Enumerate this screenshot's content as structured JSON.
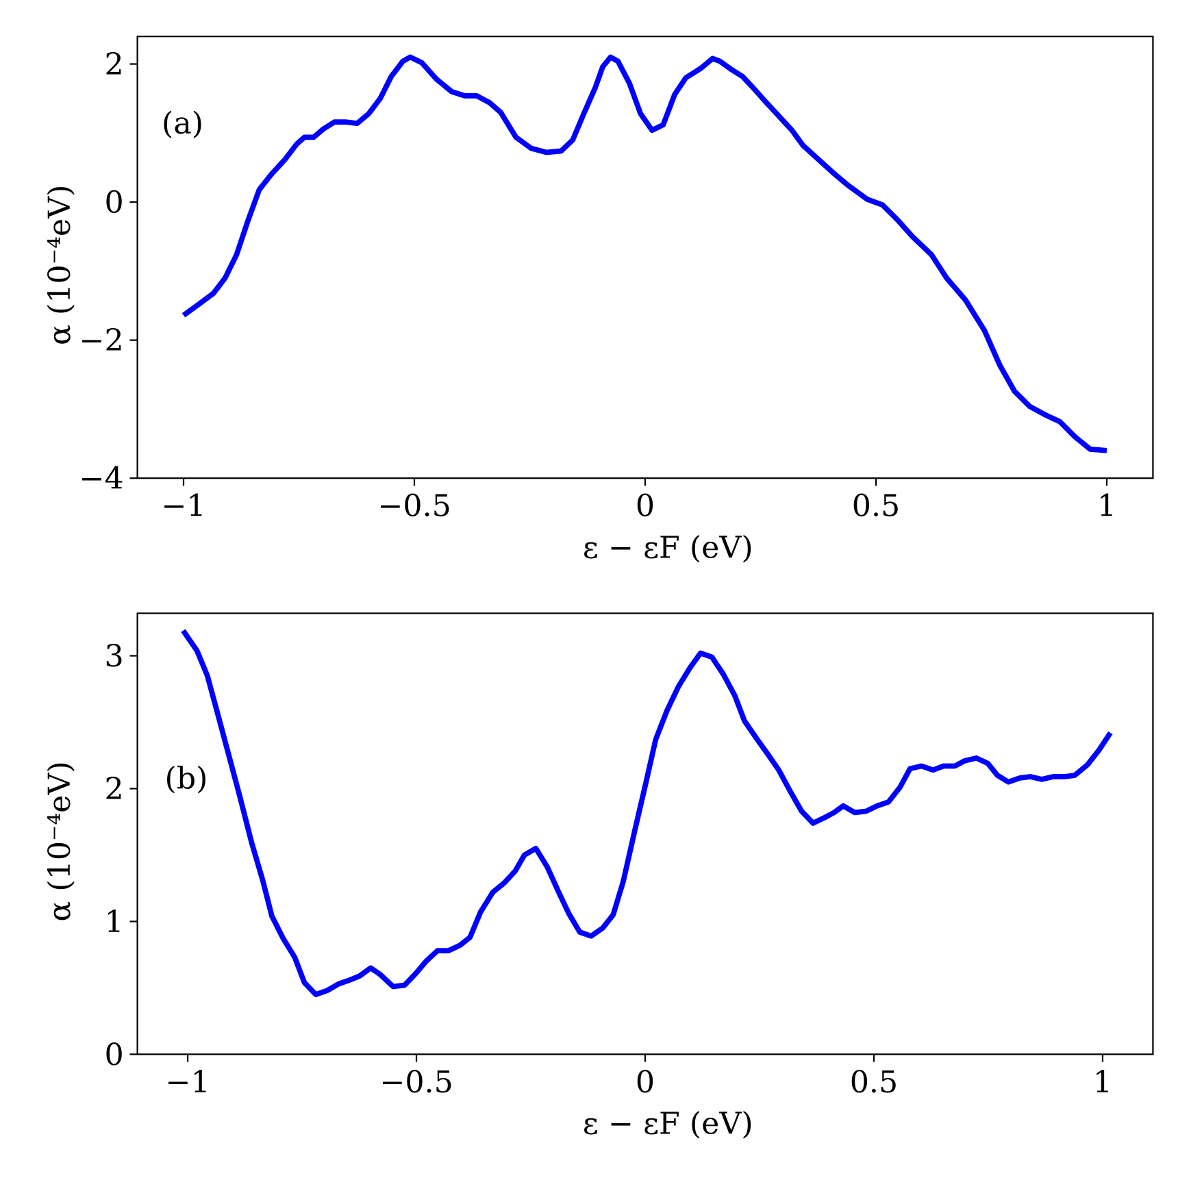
{
  "chart_data": [
    {
      "type": "line",
      "annotation": "(a)",
      "xlabel": "ε − εF (eV)",
      "ylabel": "α (10⁻⁴eV)",
      "color": "#0000ff",
      "xlim": [
        -1.1,
        1.1
      ],
      "ylim": [
        -4,
        2.4
      ],
      "xticks": [
        {
          "value": -1,
          "label": "−1"
        },
        {
          "value": -0.5,
          "label": "−0.5"
        },
        0,
        0.5,
        1
      ],
      "yticks": [
        {
          "value": -4,
          "label": "−4"
        },
        {
          "value": -2,
          "label": "−2"
        },
        0,
        2
      ],
      "x": [
        -1,
        -0.967,
        -0.935,
        -0.91,
        -0.885,
        -0.86,
        -0.836,
        -0.81,
        -0.78,
        -0.755,
        -0.738,
        -0.718,
        -0.697,
        -0.673,
        -0.648,
        -0.624,
        -0.599,
        -0.574,
        -0.55,
        -0.525,
        -0.509,
        -0.484,
        -0.452,
        -0.419,
        -0.391,
        -0.365,
        -0.337,
        -0.313,
        -0.28,
        -0.247,
        -0.214,
        -0.182,
        -0.157,
        -0.133,
        -0.108,
        -0.092,
        -0.075,
        -0.059,
        -0.034,
        -0.01,
        0.015,
        0.039,
        0.064,
        0.088,
        0.121,
        0.146,
        0.162,
        0.187,
        0.211,
        0.236,
        0.26,
        0.285,
        0.318,
        0.342,
        0.375,
        0.408,
        0.44,
        0.481,
        0.514,
        0.547,
        0.579,
        0.62,
        0.653,
        0.694,
        0.735,
        0.768,
        0.8,
        0.833,
        0.866,
        0.898,
        0.931,
        0.964,
        1.0
      ],
      "values": [
        -1.64,
        -1.48,
        -1.32,
        -1.1,
        -0.76,
        -0.26,
        0.18,
        0.4,
        0.62,
        0.84,
        0.94,
        0.94,
        1.06,
        1.16,
        1.16,
        1.14,
        1.28,
        1.5,
        1.82,
        2.04,
        2.1,
        2.02,
        1.78,
        1.6,
        1.54,
        1.54,
        1.44,
        1.3,
        0.94,
        0.78,
        0.72,
        0.74,
        0.9,
        1.28,
        1.66,
        1.96,
        2.1,
        2.04,
        1.72,
        1.28,
        1.04,
        1.12,
        1.56,
        1.8,
        1.94,
        2.08,
        2.04,
        1.92,
        1.82,
        1.64,
        1.46,
        1.28,
        1.04,
        0.82,
        0.62,
        0.42,
        0.24,
        0.04,
        -0.04,
        -0.26,
        -0.5,
        -0.76,
        -1.1,
        -1.42,
        -1.86,
        -2.36,
        -2.74,
        -2.96,
        -3.08,
        -3.18,
        -3.4,
        -3.58,
        -3.6
      ]
    },
    {
      "type": "line",
      "annotation": "(b)",
      "xlabel": "ε − εF (eV)",
      "ylabel": "α (10⁻⁴eV)",
      "color": "#0000ff",
      "xlim": [
        -1.11,
        1.11
      ],
      "ylim": [
        0,
        3.32
      ],
      "xticks": [
        {
          "value": -1,
          "label": "−1"
        },
        {
          "value": -0.5,
          "label": "−0.5"
        },
        0,
        0.5,
        1
      ],
      "yticks": [
        0,
        1,
        2,
        3
      ],
      "x": [
        -1.01,
        -0.98,
        -0.957,
        -0.935,
        -0.91,
        -0.886,
        -0.86,
        -0.836,
        -0.816,
        -0.791,
        -0.766,
        -0.745,
        -0.72,
        -0.695,
        -0.67,
        -0.645,
        -0.624,
        -0.6,
        -0.579,
        -0.551,
        -0.526,
        -0.501,
        -0.479,
        -0.454,
        -0.43,
        -0.405,
        -0.383,
        -0.36,
        -0.333,
        -0.308,
        -0.284,
        -0.264,
        -0.239,
        -0.214,
        -0.189,
        -0.167,
        -0.143,
        -0.118,
        -0.093,
        -0.07,
        -0.048,
        -0.023,
        0.002,
        0.023,
        0.048,
        0.073,
        0.098,
        0.121,
        0.146,
        0.171,
        0.196,
        0.217,
        0.245,
        0.27,
        0.292,
        0.317,
        0.342,
        0.367,
        0.391,
        0.413,
        0.433,
        0.458,
        0.483,
        0.507,
        0.532,
        0.557,
        0.579,
        0.604,
        0.629,
        0.652,
        0.677,
        0.699,
        0.724,
        0.749,
        0.77,
        0.794,
        0.819,
        0.842,
        0.867,
        0.892,
        0.917,
        0.939,
        0.967,
        0.992,
        1.017
      ],
      "values": [
        3.19,
        3.04,
        2.85,
        2.57,
        2.25,
        1.94,
        1.59,
        1.31,
        1.04,
        0.87,
        0.73,
        0.54,
        0.45,
        0.48,
        0.53,
        0.56,
        0.59,
        0.65,
        0.6,
        0.51,
        0.52,
        0.61,
        0.7,
        0.78,
        0.78,
        0.82,
        0.88,
        1.07,
        1.22,
        1.29,
        1.38,
        1.5,
        1.55,
        1.41,
        1.22,
        1.06,
        0.92,
        0.89,
        0.95,
        1.05,
        1.3,
        1.68,
        2.05,
        2.37,
        2.59,
        2.77,
        2.91,
        3.02,
        2.99,
        2.86,
        2.7,
        2.51,
        2.37,
        2.25,
        2.14,
        1.98,
        1.83,
        1.74,
        1.78,
        1.82,
        1.87,
        1.82,
        1.83,
        1.87,
        1.9,
        2.01,
        2.15,
        2.17,
        2.14,
        2.17,
        2.17,
        2.21,
        2.23,
        2.19,
        2.1,
        2.05,
        2.08,
        2.09,
        2.07,
        2.09,
        2.09,
        2.1,
        2.18,
        2.29,
        2.42
      ]
    }
  ]
}
